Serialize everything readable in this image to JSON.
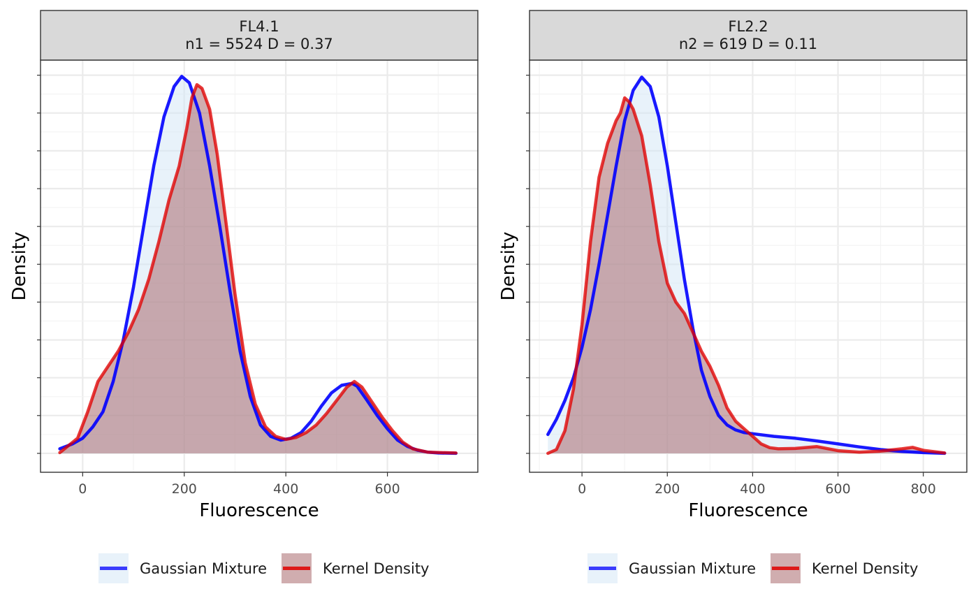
{
  "chart_data": [
    {
      "type": "area",
      "panel_title_line1": "FL4.1",
      "panel_title_line2": "n1 = 5524 D = 0.37",
      "xlabel": "Fluorescence",
      "ylabel": "Density",
      "xlim": [
        -83,
        778
      ],
      "ylim": [
        -0.05,
        1.04
      ],
      "x_ticks": [
        0,
        200,
        400,
        600
      ],
      "y_tick_labels_shown": false,
      "grid": true,
      "legend_position": "bottom",
      "legend": [
        "Gaussian Mixture",
        "Kernel Density"
      ],
      "series": [
        {
          "name": "Gaussian Mixture",
          "color": "#0000ff",
          "fill": "#d2e6f5",
          "x": [
            -45,
            -20,
            0,
            20,
            40,
            60,
            80,
            100,
            120,
            140,
            160,
            180,
            195,
            210,
            230,
            250,
            270,
            290,
            310,
            330,
            350,
            370,
            390,
            410,
            430,
            450,
            470,
            490,
            510,
            530,
            540,
            560,
            580,
            600,
            620,
            640,
            660,
            680,
            700,
            735
          ],
          "y": [
            0.012,
            0.025,
            0.04,
            0.07,
            0.11,
            0.19,
            0.3,
            0.44,
            0.6,
            0.76,
            0.89,
            0.97,
            0.997,
            0.98,
            0.9,
            0.76,
            0.6,
            0.43,
            0.27,
            0.15,
            0.075,
            0.045,
            0.035,
            0.04,
            0.055,
            0.085,
            0.125,
            0.16,
            0.18,
            0.185,
            0.178,
            0.14,
            0.1,
            0.065,
            0.035,
            0.018,
            0.008,
            0.003,
            0.001,
            0.0
          ]
        },
        {
          "name": "Kernel Density",
          "color": "#e00000",
          "fill": "#aa6a6e",
          "x": [
            -45,
            -10,
            10,
            30,
            50,
            70,
            90,
            110,
            130,
            150,
            170,
            190,
            205,
            215,
            225,
            235,
            250,
            265,
            285,
            300,
            320,
            340,
            360,
            380,
            400,
            420,
            440,
            460,
            480,
            500,
            520,
            535,
            550,
            570,
            590,
            610,
            630,
            650,
            680,
            735
          ],
          "y": [
            0.002,
            0.04,
            0.11,
            0.19,
            0.23,
            0.27,
            0.32,
            0.38,
            0.46,
            0.56,
            0.67,
            0.76,
            0.86,
            0.94,
            0.975,
            0.965,
            0.91,
            0.79,
            0.58,
            0.42,
            0.24,
            0.13,
            0.07,
            0.045,
            0.037,
            0.042,
            0.055,
            0.075,
            0.105,
            0.14,
            0.175,
            0.19,
            0.175,
            0.135,
            0.095,
            0.06,
            0.03,
            0.012,
            0.003,
            0.001
          ]
        }
      ]
    },
    {
      "type": "area",
      "panel_title_line1": "FL2.2",
      "panel_title_line2": "n2 = 619 D = 0.11",
      "xlabel": "Fluorescence",
      "ylabel": "Density",
      "xlim": [
        -123,
        902
      ],
      "ylim": [
        -0.05,
        1.04
      ],
      "x_ticks": [
        0,
        200,
        400,
        600,
        800
      ],
      "y_tick_labels_shown": false,
      "grid": true,
      "legend_position": "bottom",
      "legend": [
        "Gaussian Mixture",
        "Kernel Density"
      ],
      "series": [
        {
          "name": "Gaussian Mixture",
          "color": "#0000ff",
          "fill": "#d2e6f5",
          "x": [
            -80,
            -60,
            -40,
            -20,
            0,
            20,
            40,
            60,
            80,
            100,
            120,
            140,
            160,
            180,
            200,
            220,
            240,
            260,
            280,
            300,
            320,
            340,
            360,
            380,
            400,
            450,
            500,
            550,
            600,
            650,
            700,
            750,
            800,
            850
          ],
          "y": [
            0.05,
            0.09,
            0.14,
            0.2,
            0.28,
            0.38,
            0.5,
            0.63,
            0.76,
            0.88,
            0.96,
            0.995,
            0.97,
            0.89,
            0.76,
            0.61,
            0.46,
            0.33,
            0.22,
            0.15,
            0.1,
            0.075,
            0.062,
            0.055,
            0.052,
            0.045,
            0.04,
            0.033,
            0.025,
            0.017,
            0.01,
            0.005,
            0.002,
            0.0
          ]
        },
        {
          "name": "Kernel Density",
          "color": "#e00000",
          "fill": "#aa6a6e",
          "x": [
            -80,
            -60,
            -40,
            -20,
            0,
            20,
            40,
            60,
            80,
            90,
            100,
            110,
            120,
            140,
            160,
            180,
            200,
            220,
            240,
            260,
            280,
            300,
            320,
            340,
            360,
            380,
            400,
            420,
            440,
            460,
            500,
            550,
            600,
            650,
            700,
            750,
            775,
            800,
            850
          ],
          "y": [
            0.0,
            0.01,
            0.06,
            0.17,
            0.34,
            0.56,
            0.73,
            0.82,
            0.88,
            0.9,
            0.94,
            0.93,
            0.91,
            0.84,
            0.71,
            0.56,
            0.45,
            0.4,
            0.37,
            0.32,
            0.27,
            0.23,
            0.18,
            0.12,
            0.085,
            0.065,
            0.045,
            0.025,
            0.015,
            0.012,
            0.013,
            0.018,
            0.007,
            0.003,
            0.006,
            0.012,
            0.016,
            0.008,
            0.001
          ]
        }
      ]
    }
  ]
}
